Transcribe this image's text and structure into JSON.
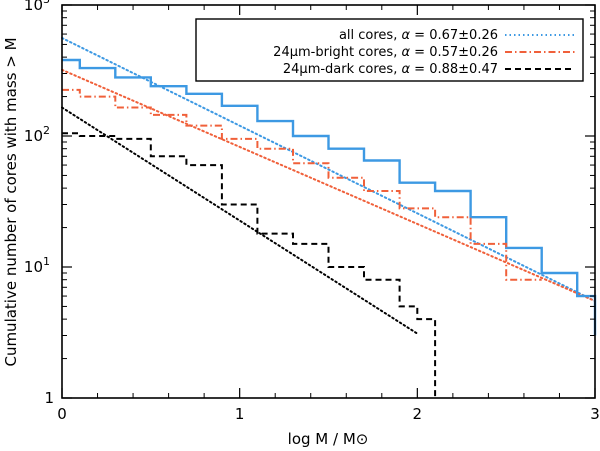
{
  "chart_data": {
    "type": "line",
    "xlabel": "log M / M⊙",
    "ylabel": "Cumulative number of cores with mass > M",
    "xlim": [
      0,
      3
    ],
    "ylim_log10": [
      0,
      3
    ],
    "yscale": "log",
    "x_ticks": [
      0,
      1,
      2,
      3
    ],
    "y_ticks": [
      {
        "exp": 0,
        "label": "1",
        "sup": ""
      },
      {
        "exp": 1,
        "label": "10",
        "sup": "1"
      },
      {
        "exp": 2,
        "label": "10",
        "sup": "2"
      },
      {
        "exp": 3,
        "label": "10",
        "sup": "3"
      }
    ],
    "legend_position": "top-right",
    "series": [
      {
        "key": "all",
        "name": "all cores, α = 0.67±0.26",
        "label_text": "all cores, ",
        "alpha_text": " = 0.67±0.26",
        "color": "#3d99e3",
        "step_x": [
          0.0,
          0.1,
          0.3,
          0.5,
          0.7,
          0.9,
          1.1,
          1.3,
          1.5,
          1.7,
          1.9,
          2.1,
          2.3,
          2.5,
          2.7,
          2.9,
          3.0
        ],
        "step_y": [
          380,
          330,
          280,
          240,
          210,
          170,
          130,
          100,
          80,
          65,
          44,
          38,
          24,
          14,
          9,
          6,
          3
        ],
        "fit": {
          "x0": 0.0,
          "x1": 3.0,
          "y0": 560,
          "y1": 5.5
        }
      },
      {
        "key": "bright",
        "name": "24µm-bright cores, α = 0.57±0.26",
        "label_text": "24µm-bright cores, ",
        "alpha_text": " = 0.57±0.26",
        "color": "#f0603a",
        "step_x": [
          0.0,
          0.1,
          0.3,
          0.5,
          0.7,
          0.9,
          1.1,
          1.3,
          1.5,
          1.7,
          1.9,
          2.1,
          2.3,
          2.5,
          2.7
        ],
        "step_y": [
          225,
          200,
          165,
          145,
          120,
          95,
          80,
          62,
          48,
          38,
          28,
          24,
          15,
          8,
          6
        ],
        "fit": {
          "x0": 0.0,
          "x1": 3.0,
          "y0": 320,
          "y1": 5.5
        }
      },
      {
        "key": "dark",
        "name": "24µm-dark cores, α = 0.88±0.47",
        "label_text": "24µm-dark cores, ",
        "alpha_text": " = 0.88±0.47",
        "color": "#000000",
        "step_x": [
          0.0,
          0.1,
          0.3,
          0.5,
          0.7,
          0.9,
          1.1,
          1.3,
          1.5,
          1.7,
          1.9,
          2.1
        ],
        "step_y": [
          105,
          100,
          95,
          70,
          60,
          30,
          18,
          15,
          10,
          8,
          5,
          4,
          2,
          1
        ],
        "step_x_full": [
          0.0,
          0.1,
          0.3,
          0.5,
          0.7,
          0.9,
          1.1,
          1.3,
          1.5,
          1.7,
          1.9,
          2.0,
          2.1,
          2.1
        ],
        "fit": {
          "x0": 0.0,
          "x1": 2.0,
          "y0": 165,
          "y1": 3.1
        }
      }
    ]
  }
}
